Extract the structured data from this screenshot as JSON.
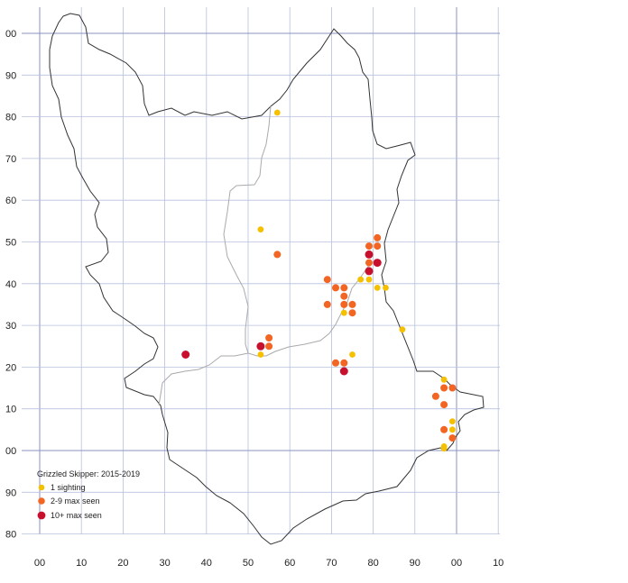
{
  "map": {
    "x_labels": [
      "00",
      "10",
      "20",
      "30",
      "40",
      "50",
      "60",
      "70",
      "80",
      "90",
      "00",
      "10"
    ],
    "y_labels": [
      "00",
      "90",
      "80",
      "70",
      "60",
      "50",
      "40",
      "30",
      "20",
      "10",
      "00",
      "90",
      "80"
    ],
    "colors": {
      "grid": "#b8c0dd",
      "grid_major": "#8a93c2",
      "boundary": "#333333",
      "inner_boundary": "#aaaaaa",
      "one_sighting": "#f5c000",
      "two_to_nine": "#f26522",
      "ten_plus": "#c8102e"
    }
  },
  "legend": {
    "title": "Grizzled Skipper:  2015-2019",
    "items": [
      {
        "label": "1 sighting",
        "color": "#f5c000"
      },
      {
        "label": "2-9 max seen",
        "color": "#f26522"
      },
      {
        "label": "10+ max seen",
        "color": "#c8102e"
      }
    ]
  },
  "records": {
    "one_sighting": [
      [
        57,
        81
      ],
      [
        53,
        53
      ],
      [
        77,
        41
      ],
      [
        79,
        41
      ],
      [
        81,
        39
      ],
      [
        83,
        39
      ],
      [
        73,
        33
      ],
      [
        87,
        29
      ],
      [
        75,
        23
      ],
      [
        53,
        23
      ],
      [
        97,
        17
      ],
      [
        99,
        7
      ],
      [
        99,
        5
      ],
      [
        97,
        1
      ],
      [
        97,
        0.5
      ]
    ],
    "two_to_nine": [
      [
        57,
        47
      ],
      [
        81,
        51
      ],
      [
        79,
        49
      ],
      [
        81,
        49
      ],
      [
        79,
        45
      ],
      [
        69,
        41
      ],
      [
        71,
        39
      ],
      [
        73,
        39
      ],
      [
        73,
        37
      ],
      [
        69,
        35
      ],
      [
        73,
        35
      ],
      [
        75,
        35
      ],
      [
        75,
        33
      ],
      [
        55,
        27
      ],
      [
        55,
        25
      ],
      [
        71,
        21
      ],
      [
        73,
        21
      ],
      [
        97,
        15
      ],
      [
        99,
        15
      ],
      [
        95,
        13
      ],
      [
        97,
        11
      ],
      [
        97,
        5
      ],
      [
        99,
        3
      ]
    ],
    "ten_plus": [
      [
        79,
        47
      ],
      [
        81,
        45
      ],
      [
        79,
        43
      ],
      [
        35,
        23
      ],
      [
        53,
        25
      ],
      [
        73,
        19
      ]
    ]
  }
}
